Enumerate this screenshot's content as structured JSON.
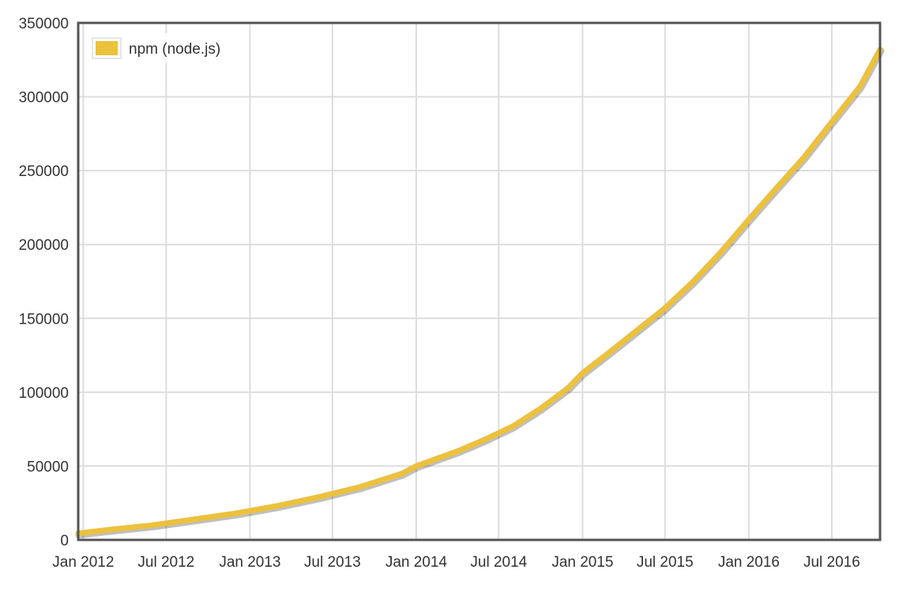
{
  "chart_data": {
    "type": "line",
    "title": "",
    "xlabel": "",
    "ylabel": "",
    "x_tick_labels": [
      "Jan 2012",
      "Jul 2012",
      "Jan 2013",
      "Jul 2013",
      "Jan 2014",
      "Jul 2014",
      "Jan 2015",
      "Jul 2015",
      "Jan 2016",
      "Jul 2016"
    ],
    "x_tick_dates": [
      "2012-01-01",
      "2012-07-01",
      "2013-01-01",
      "2013-07-01",
      "2014-01-01",
      "2014-07-01",
      "2015-01-01",
      "2015-07-01",
      "2016-01-01",
      "2016-07-01"
    ],
    "y_tick_labels": [
      "0",
      "50000",
      "100000",
      "150000",
      "200000",
      "250000",
      "300000",
      "350000"
    ],
    "y_tick_values": [
      0,
      50000,
      100000,
      150000,
      200000,
      250000,
      300000,
      350000
    ],
    "ylim": [
      0,
      350000
    ],
    "xlim": [
      "2011-12-21",
      "2016-10-15"
    ],
    "grid": true,
    "legend_position": "top-left",
    "series": [
      {
        "name": "npm (node.js)",
        "color": "#ecc13c",
        "points": [
          [
            "2011-12-21",
            4500
          ],
          [
            "2012-03-01",
            7000
          ],
          [
            "2012-06-01",
            10000
          ],
          [
            "2012-09-01",
            14000
          ],
          [
            "2012-12-01",
            18000
          ],
          [
            "2013-03-01",
            23000
          ],
          [
            "2013-06-01",
            29000
          ],
          [
            "2013-09-01",
            36000
          ],
          [
            "2013-12-01",
            45000
          ],
          [
            "2014-01-01",
            50000
          ],
          [
            "2014-04-01",
            60000
          ],
          [
            "2014-06-01",
            68000
          ],
          [
            "2014-08-01",
            77000
          ],
          [
            "2014-10-01",
            89000
          ],
          [
            "2014-12-01",
            103000
          ],
          [
            "2015-01-01",
            113000
          ],
          [
            "2015-03-01",
            127000
          ],
          [
            "2015-05-01",
            142000
          ],
          [
            "2015-07-01",
            157000
          ],
          [
            "2015-09-01",
            175000
          ],
          [
            "2015-11-01",
            195000
          ],
          [
            "2016-01-01",
            217000
          ],
          [
            "2016-03-01",
            238000
          ],
          [
            "2016-05-01",
            259000
          ],
          [
            "2016-07-01",
            283000
          ],
          [
            "2016-09-01",
            307000
          ],
          [
            "2016-10-15",
            332000
          ]
        ]
      }
    ]
  }
}
